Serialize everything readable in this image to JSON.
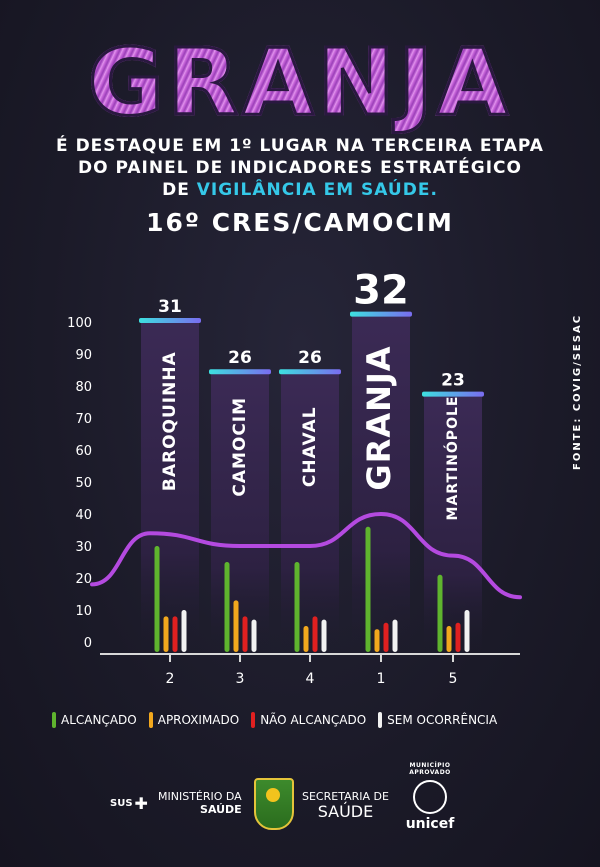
{
  "title": "GRANJA",
  "subtitle": {
    "line1": "É DESTAQUE EM 1º LUGAR NA TERCEIRA ETAPA",
    "line2": "DO PAINEL DE INDICADORES ESTRATÉGICO",
    "line3_prefix": "DE ",
    "line3_highlight": "VIGILÂNCIA EM SAÚDE."
  },
  "region": "16º CRES/CAMOCIM",
  "source": "FONTE: COVIG/SESAC",
  "colors": {
    "purple": "#c86ad9",
    "highlight": "#35c8e8",
    "green": "#5fb42e",
    "orange": "#f2a81d",
    "red": "#e02020",
    "white": "#f2f2f2",
    "column": "#3a2750"
  },
  "chart_data": {
    "type": "bar",
    "ylim": [
      0,
      100
    ],
    "yticks": [
      "100",
      "90",
      "80",
      "70",
      "60",
      "50",
      "40",
      "30",
      "20",
      "10",
      "0"
    ],
    "categories": [
      "BAROQUINHA",
      "CAMOCIM",
      "CHAVAL",
      "GRANJA",
      "MARTINÓPOLE"
    ],
    "ranks": [
      "2",
      "3",
      "4",
      "1",
      "5"
    ],
    "scores": [
      31,
      26,
      26,
      32,
      23
    ],
    "column_heights": [
      100,
      84,
      84,
      102,
      77
    ],
    "series": [
      {
        "name": "ALCANÇADO",
        "color": "#5fb42e",
        "values": [
          30,
          25,
          25,
          36,
          21
        ]
      },
      {
        "name": "APROXIMADO",
        "color": "#f2a81d",
        "values": [
          8,
          13,
          5,
          4,
          5
        ]
      },
      {
        "name": "NÃO ALCANÇADO",
        "color": "#e02020",
        "values": [
          8,
          8,
          8,
          6,
          6
        ]
      },
      {
        "name": "SEM OCORRÊNCIA",
        "color": "#f2f2f2",
        "values": [
          10,
          7,
          7,
          7,
          10
        ]
      }
    ],
    "curve": [
      18,
      34,
      30,
      30,
      40,
      27,
      14
    ]
  },
  "logos": {
    "sus": "SUS",
    "ministerio_line1": "MINISTÉRIO DA",
    "ministerio_line2": "SAÚDE",
    "secretaria_line1": "SECRETARIA DE",
    "secretaria_line2": "SAÚDE",
    "selo": "MUNICÍPIO APROVADO",
    "unicef": "unicef"
  }
}
